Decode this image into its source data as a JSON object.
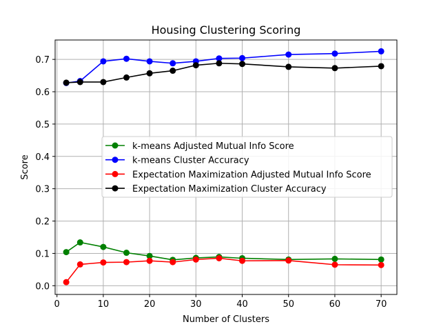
{
  "chart_data": {
    "type": "line",
    "title": "Housing Clustering Scoring",
    "xlabel": "Number of Clusters",
    "ylabel": "Score",
    "xlim": [
      -0.4,
      73.4
    ],
    "ylim": [
      -0.027,
      0.76
    ],
    "xticks": [
      0,
      10,
      20,
      30,
      40,
      50,
      60,
      70
    ],
    "yticks": [
      0.0,
      0.1,
      0.2,
      0.3,
      0.4,
      0.5,
      0.6,
      0.7
    ],
    "ytick_labels": [
      "0.0",
      "0.1",
      "0.2",
      "0.3",
      "0.4",
      "0.5",
      "0.6",
      "0.7"
    ],
    "grid": true,
    "legend_position": "center-right",
    "x": [
      2,
      5,
      10,
      15,
      20,
      25,
      30,
      35,
      40,
      50,
      60,
      70
    ],
    "series": [
      {
        "name": "k-means Adjusted Mutual Info Score",
        "color": "#008000",
        "values": [
          0.104,
          0.134,
          0.12,
          0.102,
          0.092,
          0.08,
          0.086,
          0.089,
          0.085,
          0.081,
          0.083,
          0.081
        ]
      },
      {
        "name": "k-means Cluster Accuracy",
        "color": "#0000ff",
        "values": [
          0.627,
          0.633,
          0.694,
          0.702,
          0.694,
          0.688,
          0.694,
          0.703,
          0.704,
          0.715,
          0.718,
          0.725
        ]
      },
      {
        "name": "Expectation Maximization Adjusted Mutual Info Score",
        "color": "#ff0000",
        "values": [
          0.011,
          0.066,
          0.072,
          0.073,
          0.077,
          0.073,
          0.081,
          0.085,
          0.077,
          0.078,
          0.065,
          0.064
        ]
      },
      {
        "name": "Expectation Maximization Cluster Accuracy",
        "color": "#000000",
        "values": [
          0.628,
          0.63,
          0.63,
          0.644,
          0.657,
          0.665,
          0.682,
          0.688,
          0.686,
          0.677,
          0.673,
          0.679
        ]
      }
    ]
  }
}
